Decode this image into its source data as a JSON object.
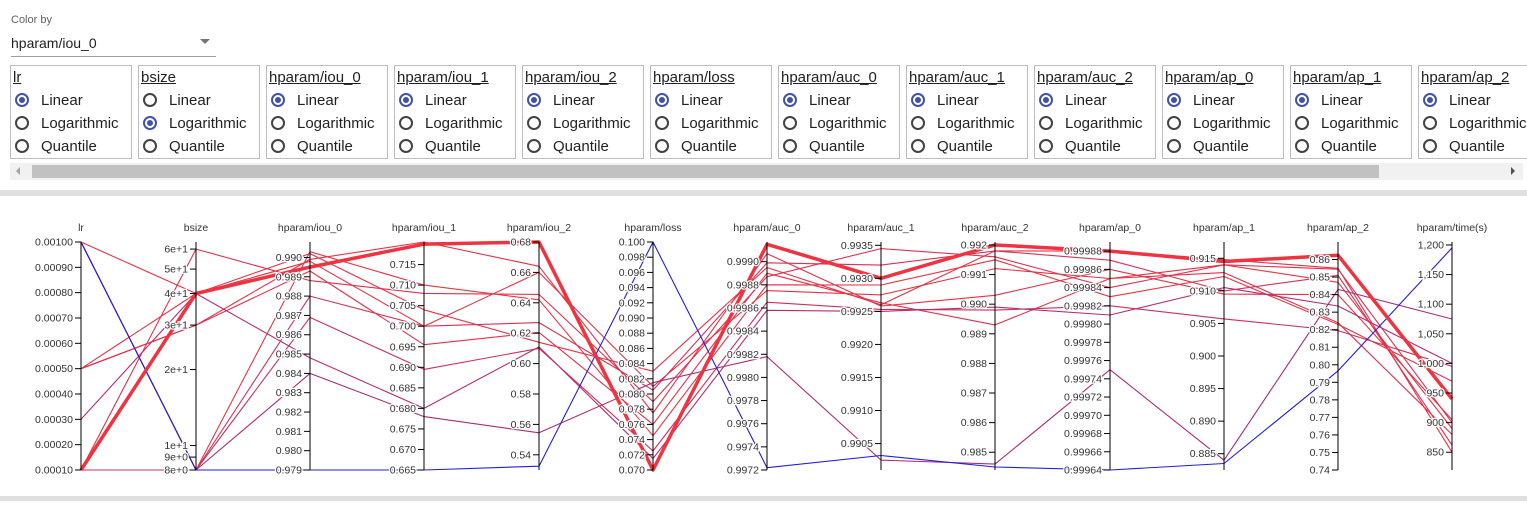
{
  "color_by": {
    "label": "Color by",
    "value": "hparam/iou_0"
  },
  "scale_options": [
    "Linear",
    "Logarithmic",
    "Quantile"
  ],
  "scale_panels": [
    {
      "name": "lr",
      "selected": "Linear"
    },
    {
      "name": "bsize",
      "selected": "Logarithmic"
    },
    {
      "name": "hparam/iou_0",
      "selected": "Linear"
    },
    {
      "name": "hparam/iou_1",
      "selected": "Linear"
    },
    {
      "name": "hparam/iou_2",
      "selected": "Linear"
    },
    {
      "name": "hparam/loss",
      "selected": "Linear"
    },
    {
      "name": "hparam/auc_0",
      "selected": "Linear"
    },
    {
      "name": "hparam/auc_1",
      "selected": "Linear"
    },
    {
      "name": "hparam/auc_2",
      "selected": "Linear"
    },
    {
      "name": "hparam/ap_0",
      "selected": "Linear"
    },
    {
      "name": "hparam/ap_1",
      "selected": "Linear"
    },
    {
      "name": "hparam/ap_2",
      "selected": "Linear"
    }
  ],
  "chart_data": {
    "type": "parallel_coordinates",
    "color_by": "hparam/iou_0",
    "colors": {
      "low": "#1e1ee6",
      "high": "#ef3340",
      "highlight": "#ef3340"
    },
    "axes": [
      {
        "name": "lr",
        "scale": "linear",
        "domain": [
          0.0001,
          0.001
        ],
        "ticks": [
          0.0001,
          0.0002,
          0.0003,
          0.0004,
          0.0005,
          0.0006,
          0.0007,
          0.0008,
          0.0009,
          0.001
        ],
        "tick_labels": [
          "0.00010",
          "0.00020",
          "0.00030",
          "0.00040",
          "0.00050",
          "0.00060",
          "0.00070",
          "0.00080",
          "0.00090",
          "0.00100"
        ]
      },
      {
        "name": "bsize",
        "scale": "log",
        "domain": [
          8,
          64
        ],
        "ticks": [
          8,
          9,
          10,
          20,
          30,
          40,
          50,
          60
        ],
        "tick_labels": [
          "8e+0",
          "9e+0",
          "1e+1",
          "2e+1",
          "3e+1",
          "4e+1",
          "5e+1",
          "6e+1"
        ]
      },
      {
        "name": "hparam/iou_0",
        "scale": "linear",
        "domain": [
          0.979,
          0.9908
        ],
        "ticks": [
          0.979,
          0.98,
          0.981,
          0.982,
          0.983,
          0.984,
          0.985,
          0.986,
          0.987,
          0.988,
          0.989,
          0.99
        ],
        "tick_labels": [
          "0.979",
          "0.980",
          "0.981",
          "0.982",
          "0.983",
          "0.984",
          "0.985",
          "0.986",
          "0.987",
          "0.988",
          "0.989",
          "0.990"
        ]
      },
      {
        "name": "hparam/iou_1",
        "scale": "linear",
        "domain": [
          0.665,
          0.7205
        ],
        "ticks": [
          0.665,
          0.67,
          0.675,
          0.68,
          0.685,
          0.69,
          0.695,
          0.7,
          0.705,
          0.71,
          0.715
        ],
        "tick_labels": [
          "0.665",
          "0.670",
          "0.675",
          "0.680",
          "0.685",
          "0.690",
          "0.695",
          "0.700",
          "0.705",
          "0.710",
          "0.715"
        ]
      },
      {
        "name": "hparam/iou_2",
        "scale": "linear",
        "domain": [
          0.53,
          0.68
        ],
        "ticks": [
          0.54,
          0.56,
          0.58,
          0.6,
          0.62,
          0.64,
          0.66,
          0.68
        ],
        "tick_labels": [
          "0.54",
          "0.56",
          "0.58",
          "0.60",
          "0.62",
          "0.64",
          "0.66",
          "0.68"
        ]
      },
      {
        "name": "hparam/loss",
        "scale": "linear",
        "domain": [
          0.07,
          0.1
        ],
        "ticks": [
          0.07,
          0.072,
          0.074,
          0.076,
          0.078,
          0.08,
          0.082,
          0.084,
          0.086,
          0.088,
          0.09,
          0.092,
          0.094,
          0.096,
          0.098,
          0.1
        ],
        "tick_labels": [
          "0.070",
          "0.072",
          "0.074",
          "0.076",
          "0.078",
          "0.080",
          "0.082",
          "0.084",
          "0.086",
          "0.088",
          "0.090",
          "0.092",
          "0.094",
          "0.096",
          "0.098",
          "0.100"
        ]
      },
      {
        "name": "hparam/auc_0",
        "scale": "linear",
        "domain": [
          0.9972,
          0.99917
        ],
        "ticks": [
          0.9972,
          0.9974,
          0.9976,
          0.9978,
          0.998,
          0.9982,
          0.9984,
          0.9986,
          0.9988,
          0.999
        ],
        "tick_labels": [
          "0.9972",
          "0.9974",
          "0.9976",
          "0.9978",
          "0.9980",
          "0.9982",
          "0.9984",
          "0.9986",
          "0.9988",
          "0.9990"
        ]
      },
      {
        "name": "hparam/auc_1",
        "scale": "linear",
        "domain": [
          0.9901,
          0.99355
        ],
        "ticks": [
          0.9905,
          0.991,
          0.9915,
          0.992,
          0.9925,
          0.993,
          0.9935
        ],
        "tick_labels": [
          "0.9905",
          "0.9910",
          "0.9915",
          "0.9920",
          "0.9925",
          "0.9930",
          "0.9935"
        ]
      },
      {
        "name": "hparam/auc_2",
        "scale": "linear",
        "domain": [
          0.9844,
          0.9921
        ],
        "ticks": [
          0.985,
          0.986,
          0.987,
          0.988,
          0.989,
          0.99,
          0.991,
          0.992
        ],
        "tick_labels": [
          "0.985",
          "0.986",
          "0.987",
          "0.988",
          "0.989",
          "0.990",
          "0.991",
          "0.992"
        ]
      },
      {
        "name": "hparam/ap_0",
        "scale": "linear",
        "domain": [
          0.99964,
          0.99989
        ],
        "ticks": [
          0.99964,
          0.99966,
          0.99968,
          0.9997,
          0.99972,
          0.99974,
          0.99976,
          0.99978,
          0.9998,
          0.99982,
          0.99984,
          0.99986,
          0.99988
        ],
        "tick_labels": [
          "0.99964",
          "0.99966",
          "0.99968",
          "0.99970",
          "0.99972",
          "0.99974",
          "0.99976",
          "0.99978",
          "0.99980",
          "0.99982",
          "0.99984",
          "0.99986",
          "0.99988"
        ]
      },
      {
        "name": "hparam/ap_1",
        "scale": "linear",
        "domain": [
          0.8825,
          0.9175
        ],
        "ticks": [
          0.885,
          0.89,
          0.895,
          0.9,
          0.905,
          0.91,
          0.915
        ],
        "tick_labels": [
          "0.885",
          "0.890",
          "0.895",
          "0.900",
          "0.905",
          "0.910",
          "0.915"
        ]
      },
      {
        "name": "hparam/ap_2",
        "scale": "linear",
        "domain": [
          0.74,
          0.87
        ],
        "ticks": [
          0.74,
          0.75,
          0.76,
          0.77,
          0.78,
          0.79,
          0.8,
          0.81,
          0.82,
          0.83,
          0.84,
          0.85,
          0.86
        ],
        "tick_labels": [
          "0.74",
          "0.75",
          "0.76",
          "0.77",
          "0.78",
          "0.79",
          "0.80",
          "0.81",
          "0.82",
          "0.83",
          "0.84",
          "0.85",
          "0.86"
        ]
      },
      {
        "name": "hparam/time(s)",
        "scale": "linear",
        "domain": [
          820,
          1205
        ],
        "ticks": [
          850,
          900,
          950,
          1000,
          1050,
          1100,
          1150,
          1200
        ],
        "tick_labels": [
          "850",
          "900",
          "950",
          "1,000",
          "1,050",
          "1,100",
          "1,150",
          "1,200"
        ]
      }
    ],
    "runs": [
      {
        "values": [
          0.0001,
          40,
          0.9895,
          0.72,
          0.68,
          0.07,
          0.99915,
          0.993,
          0.992,
          0.99988,
          0.9145,
          0.8625,
          940
        ],
        "highlight": true
      },
      {
        "values": [
          0.001,
          40,
          0.9902,
          0.704,
          0.614,
          0.083,
          0.99895,
          0.9926,
          0.9918,
          0.99988,
          0.9148,
          0.855,
          850
        ]
      },
      {
        "values": [
          0.001,
          8,
          0.988,
          0.7,
          0.627,
          0.0805,
          0.99899,
          0.9932,
          0.9918,
          0.99987,
          0.91,
          0.851,
          862
        ]
      },
      {
        "values": [
          0.0005,
          30,
          0.9899,
          0.7205,
          0.664,
          0.0775,
          0.99907,
          0.99258,
          0.9903,
          0.99986,
          0.9095,
          0.84,
          905
        ]
      },
      {
        "values": [
          0.0005,
          30,
          0.9893,
          0.6955,
          0.6205,
          0.076,
          0.9989,
          0.99263,
          0.9893,
          0.99985,
          0.9128,
          0.824,
          880
        ]
      },
      {
        "values": [
          0.0001,
          60,
          0.9888,
          0.708,
          0.6455,
          0.079,
          0.99887,
          0.99345,
          0.9916,
          0.99984,
          0.914,
          0.8545,
          900
        ]
      },
      {
        "values": [
          0.001,
          8,
          0.9903,
          0.71,
          0.642,
          0.0745,
          0.9988,
          0.9929,
          0.9915,
          0.99983,
          0.9122,
          0.823,
          970
        ]
      },
      {
        "values": [
          0.0005,
          40,
          0.9898,
          0.7,
          0.66,
          0.081,
          0.99875,
          0.99275,
          0.9912,
          0.99985,
          0.914,
          0.847,
          890
        ]
      },
      {
        "values": [
          0.0001,
          8,
          0.9869,
          0.6895,
          0.61,
          0.0725,
          0.99865,
          0.99253,
          0.9898,
          0.99982,
          0.9057,
          0.8195,
          995
        ]
      },
      {
        "values": [
          0.0003,
          40,
          0.9848,
          0.68,
          0.611,
          0.0715,
          0.99858,
          0.9925,
          0.9899,
          0.99981,
          0.9105,
          0.8335,
          1000
        ]
      },
      {
        "values": [
          0.001,
          8,
          0.984,
          0.678,
          0.5545,
          0.0815,
          0.99818,
          0.99025,
          0.9846,
          0.99975,
          0.884,
          0.843,
          1075
        ]
      },
      {
        "values": [
          0.001,
          8,
          0.979,
          0.665,
          0.5325,
          0.1,
          0.99722,
          0.99032,
          0.9845,
          0.99964,
          0.8835,
          0.7965,
          1195
        ]
      }
    ]
  }
}
